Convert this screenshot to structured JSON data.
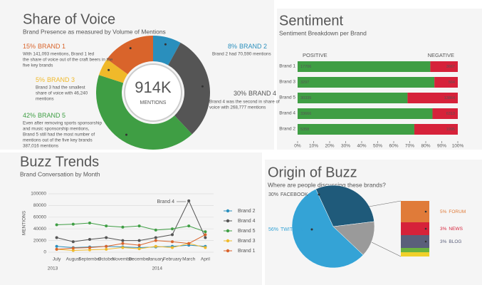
{
  "chart_data": [
    {
      "type": "donut",
      "title": "Share of Voice",
      "subtitle": "Brand Presence as measured by Volume of Mentions",
      "center_label": "914K",
      "center_sublabel": "MENTIONS",
      "categories": [
        "BRAND 2",
        "BRAND 4",
        "BRAND 5",
        "BRAND 3",
        "BRAND 1"
      ],
      "values": [
        8,
        30,
        42,
        5,
        15
      ],
      "value_labels": [
        "8%",
        "30%",
        "42%",
        "5%",
        "15%"
      ],
      "colors": [
        "#2a8fbd",
        "#555555",
        "#3f9e44",
        "#f0b92a",
        "#d9642b"
      ],
      "annotations": [
        [
          "Brand 2 had 70,590 mentions"
        ],
        [
          "Brand 4 was the second in share of",
          "voice with 268,777 mentions"
        ],
        [
          "Even after removing sports sponsorship",
          "and music sponsorship mentions,",
          "Brand 5 still had the most number of",
          "mentions out of the five key brands",
          "387,016 mentions"
        ],
        [
          "Brand 3 had the smallest",
          "share of voice with 46,240",
          "mentions"
        ],
        [
          "With 141,093 mentions, Brand 1 led",
          "the share of voice out of the craft beers in the",
          "five key brands"
        ]
      ]
    },
    {
      "type": "bar",
      "orientation": "horizontal",
      "stacking": "percent",
      "title": "Sentiment",
      "subtitle": "Sentiment Breakdown per Brand",
      "categories": [
        "Brand 1",
        "Brand 3",
        "Brand 5",
        "Brand 4",
        "Brand 2"
      ],
      "series": [
        {
          "name": "POSITIVE",
          "color": "#3f9e44",
          "values": [
            17706,
            3297,
            30335,
            33666,
            5358
          ]
        },
        {
          "name": "NEGATIVE",
          "color": "#d6223a",
          "values": [
            3667,
            564,
            13864,
            6313,
            1995
          ]
        }
      ],
      "xlim": [
        0,
        100
      ],
      "xticks": [
        {
          "value": 0,
          "label": "0%"
        },
        {
          "value": 10,
          "label": "10%"
        },
        {
          "value": 20,
          "label": "20%"
        },
        {
          "value": 30,
          "label": "30%"
        },
        {
          "value": 40,
          "label": "40%"
        },
        {
          "value": 50,
          "label": "50%"
        },
        {
          "value": 60,
          "label": "60%"
        },
        {
          "value": 70,
          "label": "70%"
        },
        {
          "value": 80,
          "label": "80%"
        },
        {
          "value": 90,
          "label": "90%"
        },
        {
          "value": 100,
          "label": "100%"
        }
      ]
    },
    {
      "type": "line",
      "title": "Buzz Trends",
      "subtitle": "Brand Conversation by Month",
      "y_label": "MENTIONS",
      "categories": [
        "July",
        "August",
        "September",
        "October",
        "November",
        "December",
        "January",
        "February",
        "March",
        "April"
      ],
      "year_labels": [
        "2013",
        "2014"
      ],
      "annotations": [
        "Brand 4"
      ],
      "ylim": [
        0,
        100000
      ],
      "yticks": [
        0,
        20000,
        40000,
        60000,
        80000,
        100000
      ],
      "grid": true,
      "legend": "right",
      "series": [
        {
          "name": "Brand 2",
          "color": "#2a8fbd",
          "values": [
            10000,
            8000,
            9000,
            10000,
            9000,
            8000,
            9000,
            10000,
            12000,
            10000
          ]
        },
        {
          "name": "Brand 4",
          "color": "#555555",
          "values": [
            25000,
            18000,
            22000,
            25000,
            20000,
            20000,
            25000,
            30000,
            88000,
            25000
          ]
        },
        {
          "name": "Brand 5",
          "color": "#3f9e44",
          "values": [
            47000,
            48000,
            50000,
            45000,
            43000,
            45000,
            38000,
            40000,
            45000,
            35000
          ]
        },
        {
          "name": "Brand 3",
          "color": "#f0b92a",
          "values": [
            5000,
            3000,
            4000,
            5000,
            8000,
            6000,
            10000,
            8000,
            15000,
            8000
          ]
        },
        {
          "name": "Brand 1",
          "color": "#d9642b",
          "values": [
            5000,
            7000,
            8000,
            10000,
            15000,
            12000,
            20000,
            18000,
            15000,
            30000
          ]
        }
      ]
    },
    {
      "type": "pie",
      "title": "Origin of Buzz",
      "subtitle": "Where are people discussing these brands?",
      "categories": [
        "FACEBOOK",
        null,
        "TWITTER"
      ],
      "values": [
        30,
        14,
        56
      ],
      "value_labels": [
        "30%",
        null,
        "56%"
      ],
      "colors": [
        "#1f5a7a",
        "#9a9a9a",
        "#34a3d6"
      ],
      "breakdown": {
        "categories": [
          "FORUM",
          "NEWS",
          "BLOG",
          null,
          null
        ],
        "values": [
          5,
          3,
          3,
          1,
          1
        ],
        "value_labels": [
          "5%",
          "3%",
          "3%",
          null,
          null
        ],
        "colors": [
          "#e07b39",
          "#d6223a",
          "#5a5f7a",
          "#6cb33f",
          "#f0d02a"
        ]
      }
    }
  ]
}
